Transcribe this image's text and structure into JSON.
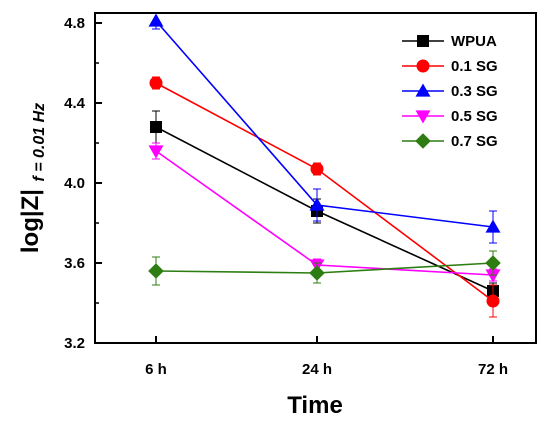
{
  "chart_data": {
    "type": "line",
    "categories": [
      "6 h",
      "24 h",
      "72 h"
    ],
    "xlabel": "Time",
    "ylabel": {
      "main": "log|Z|",
      "subscript": "f = 0.01 Hz"
    },
    "ylim": [
      3.2,
      4.85
    ],
    "yticks": [
      "3.2",
      "3.6",
      "4.0",
      "4.4",
      "4.8"
    ],
    "grid": false,
    "legend_position": "top-right",
    "series": [
      {
        "name": "WPUA",
        "values": [
          4.28,
          3.86,
          3.46
        ],
        "errors": [
          0.08,
          0.06,
          0.04
        ],
        "color": "#000000",
        "marker": "square"
      },
      {
        "name": "0.1 SG",
        "values": [
          4.5,
          4.07,
          3.41
        ],
        "errors": [
          0.03,
          0.03,
          0.08
        ],
        "color": "#ff0000",
        "marker": "circle"
      },
      {
        "name": "0.3 SG",
        "values": [
          4.81,
          3.89,
          3.78
        ],
        "errors": [
          0.04,
          0.08,
          0.08
        ],
        "color": "#0000ff",
        "marker": "triangle-up"
      },
      {
        "name": "0.5 SG",
        "values": [
          4.16,
          3.59,
          3.54
        ],
        "errors": [
          0.04,
          0.03,
          0.03
        ],
        "color": "#ff00ff",
        "marker": "triangle-down"
      },
      {
        "name": "0.7 SG",
        "values": [
          3.56,
          3.55,
          3.6
        ],
        "errors": [
          0.07,
          0.05,
          0.06
        ],
        "color": "#2e7d12",
        "marker": "diamond"
      }
    ]
  }
}
